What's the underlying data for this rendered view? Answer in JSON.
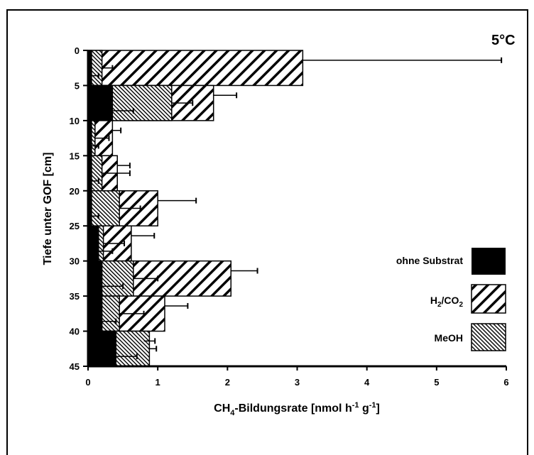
{
  "chart_data": {
    "type": "bar",
    "orientation": "horizontal",
    "annotation": "5°C",
    "xlabel": "CH4-Bildungsrate [nmol h-1 g-1]",
    "ylabel": "Tiefe unter GOF [cm]",
    "xlim": [
      0,
      6
    ],
    "ylim": [
      0,
      45
    ],
    "x_ticks": [
      "0",
      "1",
      "2",
      "3",
      "4",
      "5",
      "6"
    ],
    "y_ticks": [
      "0",
      "5",
      "10",
      "15",
      "20",
      "25",
      "30",
      "35",
      "40",
      "45"
    ],
    "depth_bins": [
      [
        0,
        5
      ],
      [
        5,
        10
      ],
      [
        10,
        15
      ],
      [
        15,
        20
      ],
      [
        20,
        25
      ],
      [
        25,
        30
      ],
      [
        30,
        35
      ],
      [
        35,
        40
      ],
      [
        40,
        45
      ]
    ],
    "series": [
      {
        "name": "ohne Substrat",
        "values": [
          0.05,
          0.35,
          0.05,
          0.05,
          0.05,
          0.15,
          0.2,
          0.2,
          0.4
        ],
        "error": [
          0.1,
          0.3,
          0.1,
          0.1,
          0.1,
          0.2,
          0.3,
          0.2,
          0.3
        ]
      },
      {
        "name": "H2/CO2",
        "values": [
          3.08,
          1.8,
          0.35,
          0.42,
          1.0,
          0.62,
          2.05,
          1.1,
          0.8
        ],
        "error": [
          2.85,
          0.33,
          0.12,
          0.18,
          0.55,
          0.33,
          0.38,
          0.33,
          0.16
        ]
      },
      {
        "name": "MeOH",
        "values": [
          0.2,
          1.2,
          0.1,
          0.2,
          0.45,
          0.22,
          0.65,
          0.45,
          0.88
        ],
        "error": [
          0.15,
          0.3,
          0.2,
          0.4,
          0.3,
          0.3,
          0.35,
          0.35,
          0.1
        ]
      }
    ],
    "legend_position": "right",
    "grid": false
  },
  "legend": {
    "item1": "ohne Substrat",
    "item2_main": "H",
    "item2_sub": "2",
    "item2_mid": "/CO",
    "item2_sub2": "2",
    "item3": "MeOH"
  },
  "labels": {
    "annotation": "5°C",
    "xlabel_pre": "CH",
    "xlabel_sub": "4",
    "xlabel_mid": "-Bildungsrate [nmol h",
    "xlabel_sup1": "-1",
    "xlabel_mid2": " g",
    "xlabel_sup2": "-1",
    "xlabel_post": "]",
    "ylabel": "Tiefe unter GOF [cm]"
  }
}
